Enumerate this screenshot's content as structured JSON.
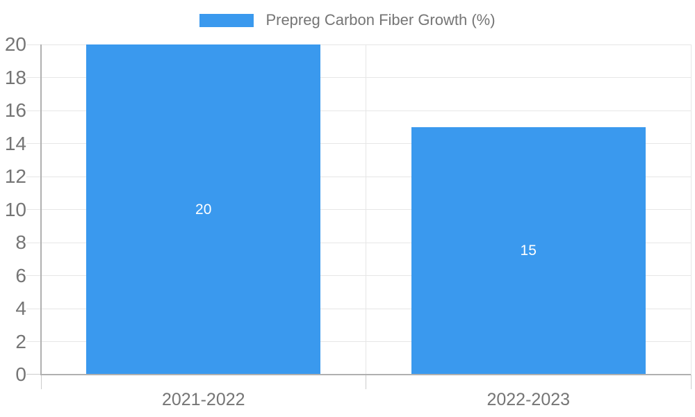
{
  "chart_data": {
    "type": "bar",
    "title": "",
    "xlabel": "",
    "ylabel": "",
    "legend": {
      "position": "top",
      "label": "Prepreg Carbon Fiber Growth (%)"
    },
    "categories": [
      "2021-2022",
      "2022-2023"
    ],
    "series": [
      {
        "name": "Prepreg Carbon Fiber Growth (%)",
        "values": [
          20,
          15
        ]
      }
    ],
    "data_labels": [
      "20",
      "15"
    ],
    "yticks": [
      0,
      2,
      4,
      6,
      8,
      10,
      12,
      14,
      16,
      18,
      20
    ],
    "ylim": [
      0,
      20
    ],
    "grid": true,
    "colors": {
      "bar": "#3a99ee",
      "text": "#757575",
      "grid": "#e6e6e6",
      "axis": "#b0b0b0",
      "tick": "#cccccc",
      "value_text": "#ffffff"
    }
  }
}
